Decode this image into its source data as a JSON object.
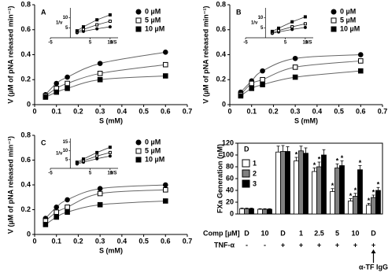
{
  "chart_data": [
    {
      "type": "scatter",
      "panel": "A",
      "xlabel": "S (mM)",
      "ylabel": "V (µM of pNA released min⁻¹)",
      "xlim": [
        0,
        0.7
      ],
      "xticks": [
        0,
        0.1,
        0.2,
        0.3,
        0.4,
        0.5,
        0.6,
        0.7
      ],
      "ylim": [
        0,
        0.8
      ],
      "yticks": [
        0,
        0.2,
        0.4,
        0.6,
        0.8
      ],
      "x": [
        0.05,
        0.1,
        0.15,
        0.3,
        0.6
      ],
      "series": [
        {
          "name": "0 µM",
          "marker": "circle",
          "color": "#000000",
          "values": [
            0.08,
            0.17,
            0.22,
            0.33,
            0.42
          ]
        },
        {
          "name": "5 µM",
          "marker": "square",
          "color": "#ffffff",
          "values": [
            0.07,
            0.13,
            0.17,
            0.25,
            0.32
          ]
        },
        {
          "name": "10 µM",
          "marker": "square",
          "color": "#000000",
          "values": [
            0.06,
            0.1,
            0.13,
            0.2,
            0.23
          ]
        }
      ],
      "inset": {
        "xlabel": "1/S",
        "ylabel": "1/v",
        "xlim": [
          -5,
          12
        ],
        "xticks": [
          -5,
          5,
          10
        ],
        "ylim": [
          0,
          15
        ],
        "yticks": [
          5,
          10
        ],
        "x": [
          1.7,
          3.3,
          6.7,
          10
        ],
        "series": [
          [
            2.5,
            3.2,
            4.5,
            5.5
          ],
          [
            3,
            4.2,
            6.5,
            8.3
          ],
          [
            3.5,
            5.5,
            9,
            11.5
          ]
        ]
      }
    },
    {
      "type": "scatter",
      "panel": "B",
      "xlabel": "S (mM)",
      "ylabel": "V (µM of pNA released min⁻¹)",
      "xlim": [
        0,
        0.7
      ],
      "xticks": [
        0,
        0.1,
        0.2,
        0.3,
        0.4,
        0.5,
        0.6,
        0.7
      ],
      "ylim": [
        0,
        0.8
      ],
      "yticks": [
        0,
        0.2,
        0.4,
        0.6,
        0.8
      ],
      "x": [
        0.05,
        0.1,
        0.15,
        0.3,
        0.6
      ],
      "series": [
        {
          "name": "0 µM",
          "marker": "circle",
          "color": "#000000",
          "values": [
            0.1,
            0.19,
            0.27,
            0.37,
            0.4
          ]
        },
        {
          "name": "5 µM",
          "marker": "square",
          "color": "#ffffff",
          "values": [
            0.08,
            0.17,
            0.2,
            0.3,
            0.35
          ]
        },
        {
          "name": "10 µM",
          "marker": "square",
          "color": "#000000",
          "values": [
            0.07,
            0.13,
            0.16,
            0.22,
            0.27
          ]
        }
      ],
      "inset": {
        "xlabel": "1/S",
        "ylabel": "1/v",
        "xlim": [
          -5,
          12
        ],
        "xticks": [
          -5,
          5,
          10
        ],
        "ylim": [
          0,
          15
        ],
        "yticks": [
          5,
          10
        ],
        "x": [
          1.7,
          3.3,
          6.7,
          10
        ],
        "series": [
          [
            2.2,
            2.9,
            4.2,
            5.2
          ],
          [
            2.6,
            3.6,
            5.5,
            7
          ],
          [
            3.2,
            4.8,
            8,
            10.5
          ]
        ]
      }
    },
    {
      "type": "scatter",
      "panel": "C",
      "xlabel": "S (mM)",
      "ylabel": "V (µM of pNA released min⁻¹)",
      "xlim": [
        0,
        0.7
      ],
      "xticks": [
        0,
        0.1,
        0.2,
        0.3,
        0.4,
        0.5,
        0.6,
        0.7
      ],
      "ylim": [
        0,
        0.8
      ],
      "yticks": [
        0,
        0.2,
        0.4,
        0.6,
        0.8
      ],
      "x": [
        0.05,
        0.1,
        0.15,
        0.3,
        0.6
      ],
      "series": [
        {
          "name": "0 µM",
          "marker": "circle",
          "color": "#000000",
          "values": [
            0.13,
            0.22,
            0.28,
            0.37,
            0.4
          ]
        },
        {
          "name": "5 µM",
          "marker": "square",
          "color": "#ffffff",
          "values": [
            0.11,
            0.18,
            0.22,
            0.33,
            0.36
          ]
        },
        {
          "name": "10 µM",
          "marker": "square",
          "color": "#000000",
          "values": [
            0.08,
            0.14,
            0.18,
            0.24,
            0.27
          ]
        }
      ],
      "inset": {
        "xlabel": "1/S",
        "ylabel": "1/v",
        "xlim": [
          -5,
          12
        ],
        "xticks": [
          -5,
          5,
          10
        ],
        "ylim": [
          0,
          17
        ],
        "yticks": [
          5,
          10,
          15
        ],
        "x": [
          1.7,
          3.3,
          6.7,
          10
        ],
        "series": [
          [
            2.5,
            3.5,
            5.5,
            7
          ],
          [
            3,
            4.3,
            7,
            9
          ],
          [
            3.5,
            5.3,
            9,
            12
          ]
        ]
      }
    },
    {
      "type": "bar",
      "panel": "D",
      "ylabel": "FXa Generation (nM)",
      "xlabel": "Comp [µM]",
      "ylim": [
        0,
        120
      ],
      "yticks": [
        0,
        20,
        40,
        60,
        80,
        100,
        120
      ],
      "categories": [
        "D",
        "10",
        "D",
        "1",
        "2.5",
        "5",
        "10",
        "D"
      ],
      "row_label": "TNF-α",
      "row": [
        "-",
        "-",
        "+",
        "+",
        "+",
        "+",
        "+",
        "+"
      ],
      "annotation": "α-TF IgG",
      "series": [
        {
          "name": "1",
          "color": "#ffffff",
          "values": [
            9,
            8,
            105,
            90,
            72,
            38,
            22,
            15
          ],
          "errors": [
            1,
            1,
            10,
            6,
            6,
            5,
            4,
            3
          ],
          "marks": [
            null,
            null,
            null,
            "*",
            "*",
            "*",
            "*",
            "*"
          ]
        },
        {
          "name": "2",
          "color": "#808080",
          "values": [
            9,
            8,
            106,
            107,
            80,
            78,
            30,
            28
          ],
          "errors": [
            1,
            1,
            10,
            8,
            8,
            7,
            5,
            4
          ],
          "marks": [
            null,
            null,
            null,
            null,
            "*",
            "*",
            "*",
            "*"
          ]
        },
        {
          "name": "3",
          "color": "#000000",
          "values": [
            9,
            8,
            106,
            103,
            100,
            82,
            75,
            40
          ],
          "errors": [
            1,
            1,
            8,
            9,
            9,
            8,
            7,
            5
          ],
          "marks": [
            null,
            null,
            null,
            null,
            null,
            "*",
            "*",
            "*"
          ]
        }
      ]
    }
  ]
}
